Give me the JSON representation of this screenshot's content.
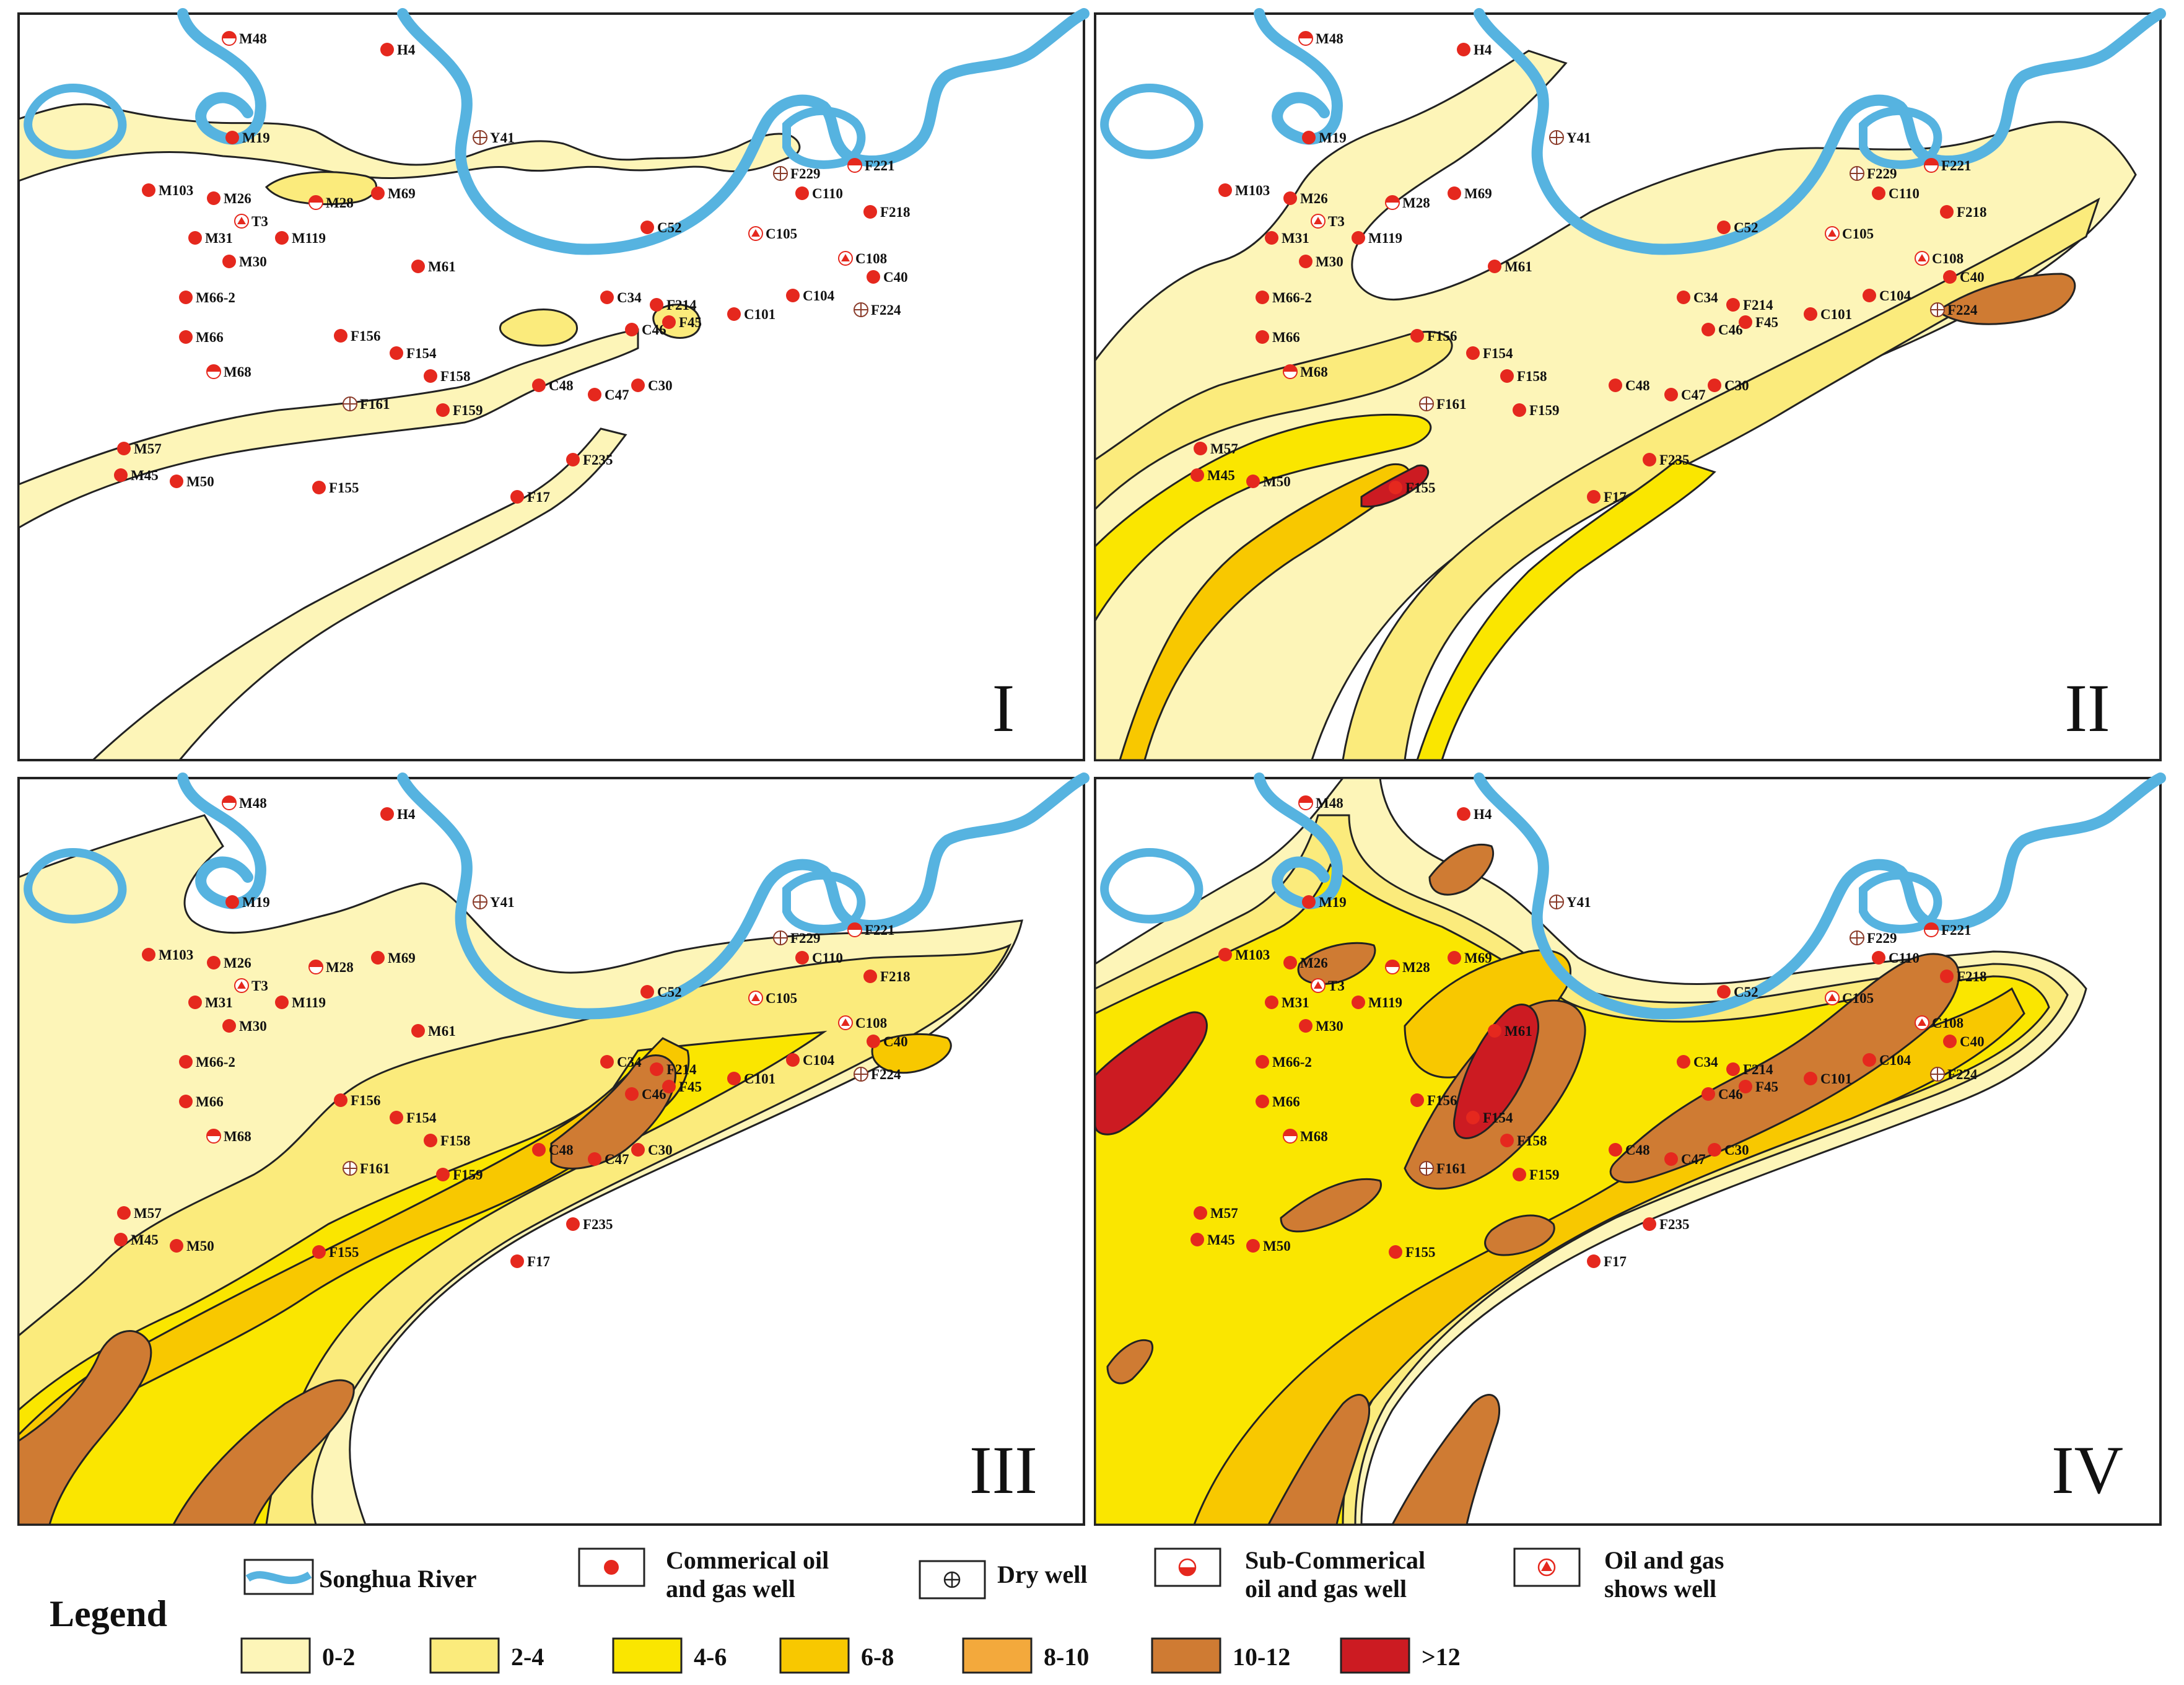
{
  "panels": [
    {
      "id": "I",
      "label": "I"
    },
    {
      "id": "II",
      "label": "II"
    },
    {
      "id": "III",
      "label": "III"
    },
    {
      "id": "IV",
      "label": "IV"
    }
  ],
  "wells": [
    {
      "name": "M48",
      "type": "sub",
      "panels": [
        "I",
        "II",
        "III",
        "IV"
      ]
    },
    {
      "name": "H4",
      "type": "commercial",
      "panels": [
        "I",
        "II",
        "III",
        "IV"
      ]
    },
    {
      "name": "M19",
      "type": "commercial",
      "panels": [
        "I",
        "II",
        "III",
        "IV"
      ]
    },
    {
      "name": "Y41",
      "type": "dry",
      "panels": [
        "I",
        "II",
        "III",
        "IV"
      ]
    },
    {
      "name": "M103",
      "type": "commercial",
      "panels": [
        "I",
        "II",
        "III",
        "IV"
      ]
    },
    {
      "name": "M26",
      "type": "commercial",
      "panels": [
        "I",
        "II",
        "III",
        "IV"
      ]
    },
    {
      "name": "M28",
      "type": "sub",
      "panels": [
        "I",
        "II",
        "III",
        "IV"
      ]
    },
    {
      "name": "M69",
      "type": "commercial",
      "panels": [
        "I",
        "II",
        "III",
        "IV"
      ]
    },
    {
      "name": "T3",
      "type": "shows",
      "panels": [
        "I",
        "II",
        "III",
        "IV"
      ]
    },
    {
      "name": "M31",
      "type": "commercial",
      "panels": [
        "I",
        "II",
        "III",
        "IV"
      ]
    },
    {
      "name": "M119",
      "type": "commercial",
      "panels": [
        "I",
        "II",
        "III",
        "IV"
      ]
    },
    {
      "name": "M30",
      "type": "commercial",
      "panels": [
        "I",
        "II",
        "III",
        "IV"
      ]
    },
    {
      "name": "M66-2",
      "type": "commercial",
      "panels": [
        "I",
        "II",
        "III",
        "IV"
      ]
    },
    {
      "name": "M66",
      "type": "commercial",
      "panels": [
        "I",
        "II",
        "III",
        "IV"
      ]
    },
    {
      "name": "M68",
      "type": "sub",
      "panels": [
        "I",
        "II",
        "III",
        "IV"
      ]
    },
    {
      "name": "M57",
      "type": "commercial",
      "panels": [
        "I",
        "II",
        "III",
        "IV"
      ]
    },
    {
      "name": "M45",
      "type": "commercial",
      "panels": [
        "I",
        "II",
        "III",
        "IV"
      ]
    },
    {
      "name": "M50",
      "type": "commercial",
      "panels": [
        "I",
        "II",
        "III",
        "IV"
      ]
    },
    {
      "name": "M61",
      "type": "commercial",
      "panels": [
        "I",
        "II",
        "III",
        "IV"
      ]
    },
    {
      "name": "F156",
      "type": "commercial",
      "panels": [
        "I",
        "II",
        "III",
        "IV"
      ]
    },
    {
      "name": "F154",
      "type": "commercial",
      "panels": [
        "I",
        "II",
        "III",
        "IV"
      ]
    },
    {
      "name": "F158",
      "type": "commercial",
      "panels": [
        "I",
        "II",
        "III",
        "IV"
      ]
    },
    {
      "name": "F161",
      "type": "dry",
      "panels": [
        "I",
        "II",
        "III",
        "IV"
      ]
    },
    {
      "name": "F159",
      "type": "commercial",
      "panels": [
        "I",
        "II",
        "III",
        "IV"
      ]
    },
    {
      "name": "F155",
      "type": "commercial",
      "panels": [
        "I",
        "II",
        "III",
        "IV"
      ]
    },
    {
      "name": "F235",
      "type": "commercial",
      "panels": [
        "I",
        "II",
        "III",
        "IV"
      ]
    },
    {
      "name": "F17",
      "type": "commercial",
      "panels": [
        "I",
        "II",
        "III",
        "IV"
      ]
    },
    {
      "name": "C52",
      "type": "commercial",
      "panels": [
        "I",
        "II",
        "III",
        "IV"
      ]
    },
    {
      "name": "C34",
      "type": "commercial",
      "panels": [
        "I",
        "II",
        "III",
        "IV"
      ]
    },
    {
      "name": "C46",
      "type": "commercial",
      "panels": [
        "I",
        "II",
        "III",
        "IV"
      ]
    },
    {
      "name": "F214",
      "type": "commercial",
      "panels": [
        "I",
        "II",
        "III",
        "IV"
      ]
    },
    {
      "name": "F45",
      "type": "commercial",
      "panels": [
        "I",
        "II",
        "III",
        "IV"
      ]
    },
    {
      "name": "C48",
      "type": "commercial",
      "panels": [
        "I",
        "II",
        "III",
        "IV"
      ]
    },
    {
      "name": "C47",
      "type": "commercial",
      "panels": [
        "I",
        "II",
        "III",
        "IV"
      ]
    },
    {
      "name": "C30",
      "type": "commercial",
      "panels": [
        "I",
        "II",
        "III",
        "IV"
      ]
    },
    {
      "name": "C101",
      "type": "commercial",
      "panels": [
        "I",
        "II",
        "III",
        "IV"
      ]
    },
    {
      "name": "C104",
      "type": "commercial",
      "panels": [
        "I",
        "II",
        "III",
        "IV"
      ]
    },
    {
      "name": "F229",
      "type": "dry",
      "panels": [
        "I",
        "II",
        "III",
        "IV"
      ]
    },
    {
      "name": "C110",
      "type": "commercial",
      "panels": [
        "I",
        "II",
        "III",
        "IV"
      ]
    },
    {
      "name": "F221",
      "type": "sub",
      "panels": [
        "I",
        "II",
        "III",
        "IV"
      ]
    },
    {
      "name": "F218",
      "type": "commercial",
      "panels": [
        "I",
        "II",
        "III",
        "IV"
      ]
    },
    {
      "name": "C105",
      "type": "shows",
      "panels": [
        "I",
        "II",
        "III",
        "IV"
      ]
    },
    {
      "name": "C108",
      "type": "shows",
      "panels": [
        "I",
        "II",
        "III",
        "IV"
      ]
    },
    {
      "name": "C40",
      "type": "commercial",
      "panels": [
        "I",
        "II",
        "III",
        "IV"
      ]
    },
    {
      "name": "F224",
      "type": "dry",
      "panels": [
        "I",
        "II",
        "III",
        "IV"
      ]
    }
  ],
  "legend": {
    "title": "Legend",
    "symbols": [
      {
        "key": "river",
        "lines": [
          "Songhua River"
        ]
      },
      {
        "key": "commercial",
        "lines": [
          "Commerical oil",
          "and gas well"
        ]
      },
      {
        "key": "dry",
        "lines": [
          "Dry well"
        ]
      },
      {
        "key": "sub",
        "lines": [
          "Sub-Commerical",
          "oil and gas well"
        ]
      },
      {
        "key": "shows",
        "lines": [
          "Oil and gas",
          "shows well"
        ]
      }
    ],
    "classes": [
      {
        "label": "0-2",
        "color": "#fdf5b8"
      },
      {
        "label": "2-4",
        "color": "#fbeb7c"
      },
      {
        "label": "4-6",
        "color": "#fae600"
      },
      {
        "label": "6-8",
        "color": "#f8c800"
      },
      {
        "label": "8-10",
        "color": "#f3a93c"
      },
      {
        "label": "10-12",
        "color": "#cf7b33"
      },
      {
        "label": ">12",
        "color": "#cc1b22"
      }
    ]
  },
  "colors": {
    "river": "#56b3e0",
    "well_red": "#e5281e",
    "outline": "#222222"
  }
}
